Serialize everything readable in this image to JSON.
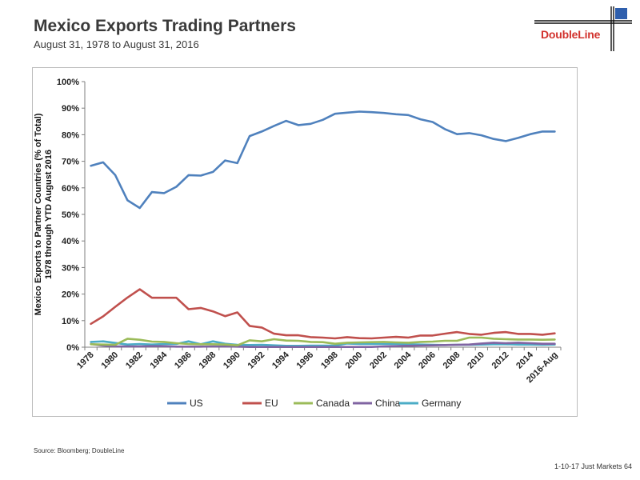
{
  "slide": {
    "title": "Mexico Exports Trading Partners",
    "subtitle": "August 31, 1978 to August 31, 2016",
    "logo_text": "DoubleLine",
    "source": "Source: Bloomberg; DoubleLine",
    "footer": "1-10-17 Just Markets   64"
  },
  "colors": {
    "US": "#4f81bd",
    "EU": "#c0504d",
    "Canada": "#9bbb59",
    "China": "#8064a2",
    "Germany": "#4bacc6",
    "logo": "#d2322d"
  },
  "chart_data": {
    "type": "line",
    "title": "",
    "ylabel": "Mexico Exports to Partner Countries (% of Total) 1978 through YTD August 2016",
    "ylabel_lines": [
      "Mexico Exports to Partner Countries (% of Total)",
      "1978 through YTD August 2016"
    ],
    "ylim": [
      0,
      100
    ],
    "yticks": [
      "0%",
      "10%",
      "20%",
      "30%",
      "40%",
      "50%",
      "60%",
      "70%",
      "80%",
      "90%",
      "100%"
    ],
    "xticks": [
      "1978",
      "1980",
      "1982",
      "1984",
      "1986",
      "1988",
      "1990",
      "1992",
      "1994",
      "1996",
      "1998",
      "2000",
      "2002",
      "2004",
      "2006",
      "2008",
      "2010",
      "2012",
      "2014",
      "2016-Aug"
    ],
    "x": [
      "1978",
      "1979",
      "1980",
      "1981",
      "1982",
      "1983",
      "1984",
      "1985",
      "1986",
      "1987",
      "1988",
      "1989",
      "1990",
      "1991",
      "1992",
      "1993",
      "1994",
      "1995",
      "1996",
      "1997",
      "1998",
      "1999",
      "2000",
      "2001",
      "2002",
      "2003",
      "2004",
      "2005",
      "2006",
      "2007",
      "2008",
      "2009",
      "2010",
      "2011",
      "2012",
      "2013",
      "2014",
      "2015",
      "2016-Aug"
    ],
    "legend_position": "bottom",
    "grid": false,
    "series": [
      {
        "name": "US",
        "values": [
          68.3,
          69.6,
          64.8,
          55.3,
          52.4,
          58.4,
          58.0,
          60.4,
          64.8,
          64.6,
          66.0,
          70.3,
          69.3,
          79.5,
          81.2,
          83.3,
          85.2,
          83.6,
          84.1,
          85.6,
          87.9,
          88.3,
          88.7,
          88.5,
          88.2,
          87.7,
          87.4,
          85.8,
          84.8,
          82.1,
          80.2,
          80.6,
          79.8,
          78.4,
          77.6,
          78.8,
          80.2,
          81.2,
          81.2
        ]
      },
      {
        "name": "EU",
        "values": [
          8.8,
          11.6,
          15.2,
          18.7,
          21.8,
          18.6,
          18.6,
          18.6,
          14.3,
          14.8,
          13.5,
          11.7,
          13.1,
          8.0,
          7.4,
          5.1,
          4.5,
          4.5,
          3.8,
          3.6,
          3.3,
          3.8,
          3.4,
          3.3,
          3.6,
          3.9,
          3.6,
          4.4,
          4.4,
          5.1,
          5.7,
          5.0,
          4.7,
          5.4,
          5.7,
          5.0,
          5.0,
          4.7,
          5.2
        ]
      },
      {
        "name": "Canada",
        "values": [
          1.1,
          1.0,
          0.9,
          3.2,
          2.8,
          2.1,
          2.0,
          1.5,
          1.2,
          1.1,
          1.1,
          1.0,
          0.7,
          2.6,
          2.2,
          3.0,
          2.5,
          2.4,
          2.0,
          1.9,
          1.3,
          1.7,
          1.8,
          1.9,
          2.0,
          1.8,
          1.7,
          2.0,
          2.1,
          2.4,
          2.4,
          3.6,
          3.6,
          3.2,
          3.0,
          2.9,
          2.9,
          2.8,
          2.9
        ]
      },
      {
        "name": "China",
        "values": [
          1.2,
          0.6,
          0.3,
          0.3,
          0.3,
          0.4,
          0.4,
          0.2,
          0.2,
          0.2,
          0.3,
          0.3,
          0.2,
          0.1,
          0.1,
          0.1,
          0.1,
          0.1,
          0.1,
          0.1,
          0.1,
          0.1,
          0.1,
          0.1,
          0.3,
          0.4,
          0.5,
          0.6,
          0.7,
          0.8,
          0.9,
          1.0,
          1.4,
          1.7,
          1.5,
          1.7,
          1.5,
          1.3,
          1.3
        ]
      },
      {
        "name": "Germany",
        "values": [
          2.0,
          2.2,
          1.6,
          1.0,
          1.2,
          1.0,
          1.2,
          1.2,
          2.2,
          1.1,
          2.2,
          1.3,
          0.9,
          0.8,
          0.9,
          0.7,
          0.5,
          0.5,
          0.6,
          0.6,
          0.6,
          1.4,
          1.2,
          1.2,
          1.2,
          1.2,
          1.1,
          1.0,
          0.9,
          0.8,
          0.9,
          0.9,
          1.0,
          1.1,
          1.1,
          1.0,
          1.0,
          0.9,
          1.0
        ]
      }
    ]
  }
}
